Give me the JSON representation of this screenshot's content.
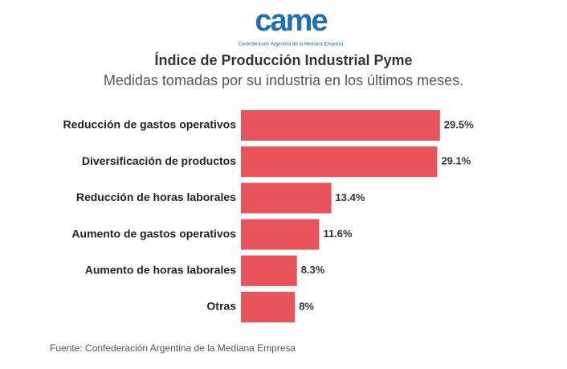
{
  "logo": "came",
  "logo_tagline": "Confederación Argentina de la Mediana Empresa",
  "chart_data": {
    "type": "bar",
    "orientation": "horizontal",
    "title": "Índice de Producción Industrial Pyme",
    "subtitle": "Medidas tomadas por su industria en los últimos meses.",
    "categories": [
      "Reducción de gastos operativos",
      "Diversificación de productos",
      "Reducción de horas laborales",
      "Aumento de gastos operativos",
      "Aumento de horas laborales",
      "Otras"
    ],
    "values": [
      29.5,
      29.1,
      13.4,
      11.6,
      8.3,
      8
    ],
    "value_labels": [
      "29.5%",
      "29.1%",
      "13.4%",
      "11.6%",
      "8.3%",
      "8%"
    ],
    "color": "#e8535c",
    "source": "Fuente: Confederación Argentina de la Mediana Empresa"
  }
}
